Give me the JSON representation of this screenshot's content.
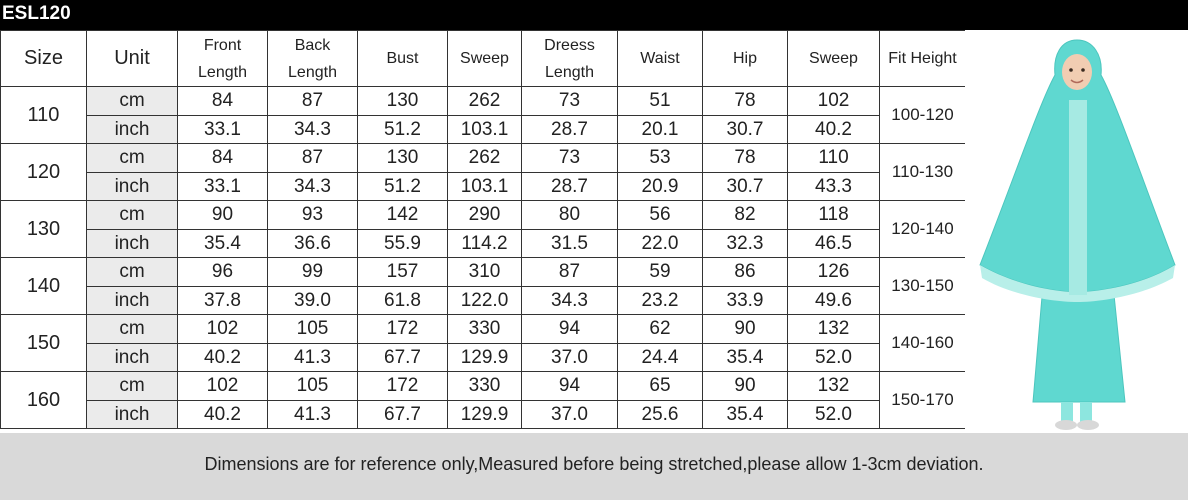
{
  "title": "ESL120",
  "headers": {
    "size": "Size",
    "unit": "Unit",
    "front_length": [
      "Front",
      "Length"
    ],
    "back_length": [
      "Back",
      "Length"
    ],
    "bust": "Bust",
    "sweep": "Sweep",
    "dress_length": [
      "Dreess",
      "Length"
    ],
    "waist": "Waist",
    "hip": "Hip",
    "sweep2": "Sweep",
    "fit_height": "Fit Height"
  },
  "rows": [
    {
      "size": "110",
      "fit": "100-120",
      "cm": [
        "cm",
        "84",
        "87",
        "130",
        "262",
        "73",
        "51",
        "78",
        "102"
      ],
      "inch": [
        "inch",
        "33.1",
        "34.3",
        "51.2",
        "103.1",
        "28.7",
        "20.1",
        "30.7",
        "40.2"
      ]
    },
    {
      "size": "120",
      "fit": "110-130",
      "cm": [
        "cm",
        "84",
        "87",
        "130",
        "262",
        "73",
        "53",
        "78",
        "110"
      ],
      "inch": [
        "inch",
        "33.1",
        "34.3",
        "51.2",
        "103.1",
        "28.7",
        "20.9",
        "30.7",
        "43.3"
      ]
    },
    {
      "size": "130",
      "fit": "120-140",
      "cm": [
        "cm",
        "90",
        "93",
        "142",
        "290",
        "80",
        "56",
        "82",
        "118"
      ],
      "inch": [
        "inch",
        "35.4",
        "36.6",
        "55.9",
        "114.2",
        "31.5",
        "22.0",
        "32.3",
        "46.5"
      ]
    },
    {
      "size": "140",
      "fit": "130-150",
      "cm": [
        "cm",
        "96",
        "99",
        "157",
        "310",
        "87",
        "59",
        "86",
        "126"
      ],
      "inch": [
        "inch",
        "37.8",
        "39.0",
        "61.8",
        "122.0",
        "34.3",
        "23.2",
        "33.9",
        "49.6"
      ]
    },
    {
      "size": "150",
      "fit": "140-160",
      "cm": [
        "cm",
        "102",
        "105",
        "172",
        "330",
        "94",
        "62",
        "90",
        "132"
      ],
      "inch": [
        "inch",
        "40.2",
        "41.3",
        "67.7",
        "129.9",
        "37.0",
        "24.4",
        "35.4",
        "52.0"
      ]
    },
    {
      "size": "160",
      "fit": "150-170",
      "cm": [
        "cm",
        "102",
        "105",
        "172",
        "330",
        "94",
        "65",
        "90",
        "132"
      ],
      "inch": [
        "inch",
        "40.2",
        "41.3",
        "67.7",
        "129.9",
        "37.0",
        "25.6",
        "35.4",
        "52.0"
      ]
    }
  ],
  "footer": "Dimensions are for reference only,Measured before being stretched,please allow 1-3cm deviation.",
  "colors": {
    "dress": "#5fd8d0",
    "lace": "#b8efe9",
    "unit_bg": "#ebebeb",
    "footer_bg": "#d9d9d9"
  }
}
